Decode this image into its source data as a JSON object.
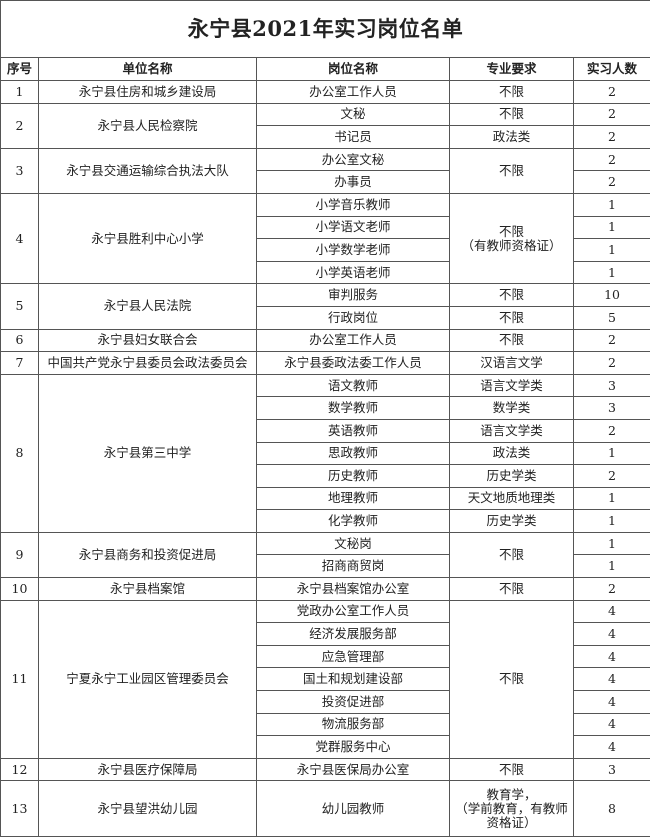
{
  "title": "永宁县2021年实习岗位名单",
  "headers": [
    "序号",
    "单位名称",
    "岗位名称",
    "专业要求",
    "实习人数"
  ],
  "units": [
    {
      "seq": "1",
      "unit": "永宁县住房和城乡建设局",
      "major_merged": null,
      "positions": [
        {
          "name": "办公室工作人员",
          "major": "不限",
          "count": "2"
        }
      ]
    },
    {
      "seq": "2",
      "unit": "永宁县人民检察院",
      "major_merged": null,
      "positions": [
        {
          "name": "文秘",
          "major": "不限",
          "count": "2"
        },
        {
          "name": "书记员",
          "major": "政法类",
          "count": "2"
        }
      ]
    },
    {
      "seq": "3",
      "unit": "永宁县交通运输综合执法大队",
      "major_merged": "不限",
      "positions": [
        {
          "name": "办公室文秘",
          "count": "2"
        },
        {
          "name": "办事员",
          "count": "2"
        }
      ]
    },
    {
      "seq": "4",
      "unit": "永宁县胜利中心小学",
      "major_merged": "不限\n（有教师资格证）",
      "positions": [
        {
          "name": "小学音乐教师",
          "count": "1"
        },
        {
          "name": "小学语文老师",
          "count": "1"
        },
        {
          "name": "小学数学老师",
          "count": "1"
        },
        {
          "name": "小学英语老师",
          "count": "1"
        }
      ]
    },
    {
      "seq": "5",
      "unit": "永宁县人民法院",
      "major_merged": null,
      "positions": [
        {
          "name": "审判服务",
          "major": "不限",
          "count": "10"
        },
        {
          "name": "行政岗位",
          "major": "不限",
          "count": "5"
        }
      ]
    },
    {
      "seq": "6",
      "unit": "永宁县妇女联合会",
      "major_merged": null,
      "positions": [
        {
          "name": "办公室工作人员",
          "major": "不限",
          "count": "2"
        }
      ]
    },
    {
      "seq": "7",
      "unit": "中国共产党永宁县委员会政法委员会",
      "major_merged": null,
      "positions": [
        {
          "name": "永宁县委政法委工作人员",
          "major": "汉语言文学",
          "count": "2"
        }
      ]
    },
    {
      "seq": "8",
      "unit": "永宁县第三中学",
      "major_merged": null,
      "positions": [
        {
          "name": "语文教师",
          "major": "语言文学类",
          "count": "3"
        },
        {
          "name": "数学教师",
          "major": "数学类",
          "count": "3"
        },
        {
          "name": "英语教师",
          "major": "语言文学类",
          "count": "2"
        },
        {
          "name": "思政教师",
          "major": "政法类",
          "count": "1"
        },
        {
          "name": "历史教师",
          "major": "历史学类",
          "count": "2"
        },
        {
          "name": "地理教师",
          "major": "天文地质地理类",
          "count": "1"
        },
        {
          "name": "化学教师",
          "major": "历史学类",
          "count": "1"
        }
      ]
    },
    {
      "seq": "9",
      "unit": "永宁县商务和投资促进局",
      "major_merged": "不限",
      "positions": [
        {
          "name": "文秘岗",
          "count": "1"
        },
        {
          "name": "招商商贸岗",
          "count": "1"
        }
      ]
    },
    {
      "seq": "10",
      "unit": "永宁县档案馆",
      "major_merged": null,
      "positions": [
        {
          "name": "永宁县档案馆办公室",
          "major": "不限",
          "count": "2"
        }
      ]
    },
    {
      "seq": "11",
      "unit": "宁夏永宁工业园区管理委员会",
      "major_merged": "不限",
      "positions": [
        {
          "name": "党政办公室工作人员",
          "count": "4"
        },
        {
          "name": "经济发展服务部",
          "count": "4"
        },
        {
          "name": "应急管理部",
          "count": "4"
        },
        {
          "name": "国土和规划建设部",
          "count": "4"
        },
        {
          "name": "投资促进部",
          "count": "4"
        },
        {
          "name": "物流服务部",
          "count": "4"
        },
        {
          "name": "党群服务中心",
          "count": "4"
        }
      ]
    },
    {
      "seq": "12",
      "unit": "永宁县医疗保障局",
      "major_merged": null,
      "positions": [
        {
          "name": "永宁县医保局办公室",
          "major": "不限",
          "count": "3"
        }
      ]
    },
    {
      "seq": "13",
      "unit": "永宁县望洪幼儿园",
      "major_merged": null,
      "tall": true,
      "positions": [
        {
          "name": "幼儿园教师",
          "major": "教育学，\n（学前教育，有教师\n资格证）",
          "count": "8"
        }
      ]
    }
  ]
}
